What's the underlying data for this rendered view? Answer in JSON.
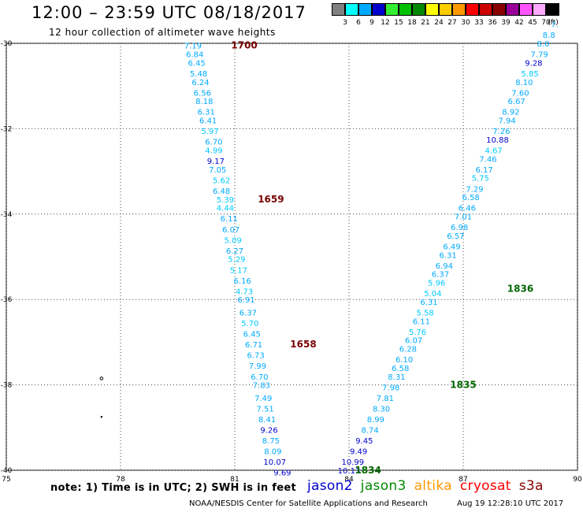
{
  "header": {
    "title": "12:00 – 23:59 UTC 08/18/2017",
    "subtitle": "12 hour collection of altimeter wave heights"
  },
  "color_scale": {
    "unit": "(ft)",
    "bins": [
      {
        "label": "3",
        "color": "#808080"
      },
      {
        "label": "6",
        "color": "#00ffff"
      },
      {
        "label": "9",
        "color": "#00aaff"
      },
      {
        "label": "12",
        "color": "#0000cc"
      },
      {
        "label": "15",
        "color": "#33ee33"
      },
      {
        "label": "18",
        "color": "#00c000"
      },
      {
        "label": "21",
        "color": "#008800"
      },
      {
        "label": "24",
        "color": "#ffff00"
      },
      {
        "label": "27",
        "color": "#ffcc00"
      },
      {
        "label": "30",
        "color": "#ff9900"
      },
      {
        "label": "33",
        "color": "#ff0000"
      },
      {
        "label": "36",
        "color": "#cc0000"
      },
      {
        "label": "39",
        "color": "#880000"
      },
      {
        "label": "42",
        "color": "#990099"
      },
      {
        "label": "45",
        "color": "#ff55ff"
      },
      {
        "label": "70",
        "color": "#ffaaff"
      },
      {
        "label": "",
        "color": "#000000"
      }
    ]
  },
  "map": {
    "lon_ticks": [
      "75",
      "78",
      "81",
      "84",
      "87",
      "90"
    ],
    "lat_ticks": [
      "-30",
      "-32",
      "-34",
      "-36",
      "-38",
      "-40"
    ],
    "lon_range": [
      75,
      90
    ],
    "lat_range": [
      -30,
      -40
    ]
  },
  "tracks": [
    {
      "satellite": "cryosat",
      "pass_labels": [
        {
          "text": "1700",
          "lon": 81.25,
          "lat": -30.05,
          "color": "#7a0000"
        },
        {
          "text": "1659",
          "lon": 81.95,
          "lat": -33.65,
          "color": "#7a0000"
        },
        {
          "text": "1658",
          "lon": 82.8,
          "lat": -37.05,
          "color": "#7a0000"
        }
      ],
      "points": [
        {
          "v": "7.19",
          "lon": 79.9,
          "lat": -30.05,
          "c": "#00aaff"
        },
        {
          "v": "6.84",
          "lon": 79.95,
          "lat": -30.25,
          "c": "#00aaff"
        },
        {
          "v": "6.45",
          "lon": 80.0,
          "lat": -30.45,
          "c": "#00aaff"
        },
        {
          "v": "5.48",
          "lon": 80.05,
          "lat": -30.7,
          "c": "#00aaff"
        },
        {
          "v": "6.24",
          "lon": 80.1,
          "lat": -30.9,
          "c": "#00aaff"
        },
        {
          "v": "6.56",
          "lon": 80.15,
          "lat": -31.15,
          "c": "#00aaff"
        },
        {
          "v": "8.18",
          "lon": 80.2,
          "lat": -31.35,
          "c": "#00aaff"
        },
        {
          "v": "6.31",
          "lon": 80.25,
          "lat": -31.6,
          "c": "#00aaff"
        },
        {
          "v": "6.41",
          "lon": 80.3,
          "lat": -31.8,
          "c": "#00aaff"
        },
        {
          "v": "5.97",
          "lon": 80.35,
          "lat": -32.05,
          "c": "#00ccff"
        },
        {
          "v": "6.70",
          "lon": 80.45,
          "lat": -32.3,
          "c": "#00aaff"
        },
        {
          "v": "4.99",
          "lon": 80.45,
          "lat": -32.5,
          "c": "#00ccff"
        },
        {
          "v": "9.17",
          "lon": 80.5,
          "lat": -32.75,
          "c": "#0000cc"
        },
        {
          "v": "7.05",
          "lon": 80.55,
          "lat": -32.95,
          "c": "#00aaff"
        },
        {
          "v": "5.62",
          "lon": 80.65,
          "lat": -33.2,
          "c": "#00ccff"
        },
        {
          "v": "6.48",
          "lon": 80.65,
          "lat": -33.45,
          "c": "#00aaff"
        },
        {
          "v": "5.39",
          "lon": 80.75,
          "lat": -33.65,
          "c": "#00ccff"
        },
        {
          "v": "4.44",
          "lon": 80.75,
          "lat": -33.85,
          "c": "#00ccff"
        },
        {
          "v": "6.11",
          "lon": 80.85,
          "lat": -34.1,
          "c": "#00aaff"
        },
        {
          "v": "6.07",
          "lon": 80.9,
          "lat": -34.35,
          "c": "#00aaff"
        },
        {
          "v": "5.09",
          "lon": 80.95,
          "lat": -34.6,
          "c": "#00ccff"
        },
        {
          "v": "6.27",
          "lon": 81.0,
          "lat": -34.85,
          "c": "#00aaff"
        },
        {
          "v": "5.29",
          "lon": 81.05,
          "lat": -35.05,
          "c": "#00ccff"
        },
        {
          "v": "5.17",
          "lon": 81.1,
          "lat": -35.3,
          "c": "#00ccff"
        },
        {
          "v": "6.16",
          "lon": 81.2,
          "lat": -35.55,
          "c": "#00aaff"
        },
        {
          "v": "4.73",
          "lon": 81.25,
          "lat": -35.8,
          "c": "#00ccff"
        },
        {
          "v": "6.91",
          "lon": 81.3,
          "lat": -36.0,
          "c": "#00aaff"
        },
        {
          "v": "6.37",
          "lon": 81.35,
          "lat": -36.3,
          "c": "#00aaff"
        },
        {
          "v": "5.70",
          "lon": 81.4,
          "lat": -36.55,
          "c": "#00ccff"
        },
        {
          "v": "6.45",
          "lon": 81.45,
          "lat": -36.8,
          "c": "#00aaff"
        },
        {
          "v": "6.71",
          "lon": 81.5,
          "lat": -37.05,
          "c": "#00aaff"
        },
        {
          "v": "6.73",
          "lon": 81.55,
          "lat": -37.3,
          "c": "#00aaff"
        },
        {
          "v": "7.99",
          "lon": 81.6,
          "lat": -37.55,
          "c": "#00aaff"
        },
        {
          "v": "6.70",
          "lon": 81.65,
          "lat": -37.8,
          "c": "#00aaff"
        },
        {
          "v": "7.83",
          "lon": 81.7,
          "lat": -38.0,
          "c": "#00aaff"
        },
        {
          "v": "7.49",
          "lon": 81.75,
          "lat": -38.3,
          "c": "#00aaff"
        },
        {
          "v": "7.51",
          "lon": 81.8,
          "lat": -38.55,
          "c": "#00aaff"
        },
        {
          "v": "8.41",
          "lon": 81.85,
          "lat": -38.8,
          "c": "#00aaff"
        },
        {
          "v": "9.26",
          "lon": 81.9,
          "lat": -39.05,
          "c": "#0000cc"
        },
        {
          "v": "8.75",
          "lon": 81.95,
          "lat": -39.3,
          "c": "#00aaff"
        },
        {
          "v": "8.09",
          "lon": 82.0,
          "lat": -39.55,
          "c": "#00aaff"
        },
        {
          "v": "10.07",
          "lon": 82.05,
          "lat": -39.8,
          "c": "#0000cc"
        },
        {
          "v": "9.69",
          "lon": 82.25,
          "lat": -40.05,
          "c": "#0000cc"
        }
      ]
    },
    {
      "satellite": "jason3",
      "pass_labels": [
        {
          "text": "1836",
          "lon": 88.5,
          "lat": -35.75,
          "color": "#006600"
        },
        {
          "text": "1835",
          "lon": 87.0,
          "lat": -38.0,
          "color": "#006600"
        },
        {
          "text": "1834",
          "lon": 84.5,
          "lat": -40.0,
          "color": "#006600"
        }
      ],
      "points": [
        {
          "v": "10.13",
          "lon": 84.0,
          "lat": -40.0,
          "c": "#0000cc"
        },
        {
          "v": "10.99",
          "lon": 84.1,
          "lat": -39.8,
          "c": "#0000cc"
        },
        {
          "v": "9.49",
          "lon": 84.25,
          "lat": -39.55,
          "c": "#0000cc"
        },
        {
          "v": "9.45",
          "lon": 84.4,
          "lat": -39.3,
          "c": "#0000cc"
        },
        {
          "v": "8.74",
          "lon": 84.55,
          "lat": -39.05,
          "c": "#00aaff"
        },
        {
          "v": "8.99",
          "lon": 84.7,
          "lat": -38.8,
          "c": "#00aaff"
        },
        {
          "v": "8.30",
          "lon": 84.85,
          "lat": -38.55,
          "c": "#00aaff"
        },
        {
          "v": "7.81",
          "lon": 84.95,
          "lat": -38.3,
          "c": "#00aaff"
        },
        {
          "v": "7.98",
          "lon": 85.1,
          "lat": -38.05,
          "c": "#00aaff"
        },
        {
          "v": "8.31",
          "lon": 85.25,
          "lat": -37.8,
          "c": "#00aaff"
        },
        {
          "v": "6.58",
          "lon": 85.35,
          "lat": -37.6,
          "c": "#00aaff"
        },
        {
          "v": "6.10",
          "lon": 85.45,
          "lat": -37.4,
          "c": "#00aaff"
        },
        {
          "v": "6.28",
          "lon": 85.55,
          "lat": -37.15,
          "c": "#00aaff"
        },
        {
          "v": "6.07",
          "lon": 85.7,
          "lat": -36.95,
          "c": "#00aaff"
        },
        {
          "v": "5.76",
          "lon": 85.8,
          "lat": -36.75,
          "c": "#00ccff"
        },
        {
          "v": "6.11",
          "lon": 85.9,
          "lat": -36.5,
          "c": "#00aaff"
        },
        {
          "v": "5.58",
          "lon": 86.0,
          "lat": -36.3,
          "c": "#00ccff"
        },
        {
          "v": "6.31",
          "lon": 86.1,
          "lat": -36.05,
          "c": "#00aaff"
        },
        {
          "v": "5.04",
          "lon": 86.2,
          "lat": -35.85,
          "c": "#00ccff"
        },
        {
          "v": "5.96",
          "lon": 86.3,
          "lat": -35.6,
          "c": "#00ccff"
        },
        {
          "v": "6.37",
          "lon": 86.4,
          "lat": -35.4,
          "c": "#00aaff"
        },
        {
          "v": "6.94",
          "lon": 86.5,
          "lat": -35.2,
          "c": "#00aaff"
        },
        {
          "v": "6.31",
          "lon": 86.6,
          "lat": -34.95,
          "c": "#00aaff"
        },
        {
          "v": "6.49",
          "lon": 86.7,
          "lat": -34.75,
          "c": "#00aaff"
        },
        {
          "v": "6.57",
          "lon": 86.8,
          "lat": -34.5,
          "c": "#00aaff"
        },
        {
          "v": "6.98",
          "lon": 86.9,
          "lat": -34.3,
          "c": "#00aaff"
        },
        {
          "v": "7.01",
          "lon": 87.0,
          "lat": -34.05,
          "c": "#00aaff"
        },
        {
          "v": "6.46",
          "lon": 87.1,
          "lat": -33.85,
          "c": "#00aaff"
        },
        {
          "v": "6.58",
          "lon": 87.2,
          "lat": -33.6,
          "c": "#00aaff"
        },
        {
          "v": "7.29",
          "lon": 87.3,
          "lat": -33.4,
          "c": "#00aaff"
        },
        {
          "v": "5.75",
          "lon": 87.45,
          "lat": -33.15,
          "c": "#00ccff"
        },
        {
          "v": "6.17",
          "lon": 87.55,
          "lat": -32.95,
          "c": "#00aaff"
        },
        {
          "v": "7.46",
          "lon": 87.65,
          "lat": -32.7,
          "c": "#00aaff"
        },
        {
          "v": "4.67",
          "lon": 87.8,
          "lat": -32.5,
          "c": "#00ccff"
        },
        {
          "v": "10.88",
          "lon": 87.9,
          "lat": -32.25,
          "c": "#0000cc"
        },
        {
          "v": "7.26",
          "lon": 88.0,
          "lat": -32.05,
          "c": "#00aaff"
        },
        {
          "v": "7.94",
          "lon": 88.15,
          "lat": -31.8,
          "c": "#00aaff"
        },
        {
          "v": "8.92",
          "lon": 88.25,
          "lat": -31.6,
          "c": "#00aaff"
        },
        {
          "v": "6.67",
          "lon": 88.4,
          "lat": -31.35,
          "c": "#00aaff"
        },
        {
          "v": "7.60",
          "lon": 88.5,
          "lat": -31.15,
          "c": "#00aaff"
        },
        {
          "v": "8.10",
          "lon": 88.6,
          "lat": -30.9,
          "c": "#00aaff"
        },
        {
          "v": "5.85",
          "lon": 88.75,
          "lat": -30.7,
          "c": "#00ccff"
        },
        {
          "v": "9.28",
          "lon": 88.85,
          "lat": -30.45,
          "c": "#0000cc"
        },
        {
          "v": "7.79",
          "lon": 89.0,
          "lat": -30.25,
          "c": "#00aaff"
        },
        {
          "v": "8.0",
          "lon": 89.1,
          "lat": -30.0,
          "c": "#00aaff"
        },
        {
          "v": "8.8",
          "lon": 89.25,
          "lat": -29.8,
          "c": "#00aaff"
        },
        {
          "v": "7.",
          "lon": 89.4,
          "lat": -29.55,
          "c": "#00aaff"
        }
      ]
    }
  ],
  "footer": {
    "note": "note: 1) Time is in UTC; 2) SWH is in feet",
    "satellites": [
      {
        "name": "jason2",
        "color": "#0000cc"
      },
      {
        "name": "jason3",
        "color": "#008800"
      },
      {
        "name": "altika",
        "color": "#ff9900"
      },
      {
        "name": "cryosat",
        "color": "#ff0000"
      },
      {
        "name": "s3a",
        "color": "#880000"
      }
    ],
    "credit": "NOAA/NESDIS Center for Satellite Applications and Research",
    "timestamp": "Aug 19 12:28:10 UTC 2017"
  }
}
